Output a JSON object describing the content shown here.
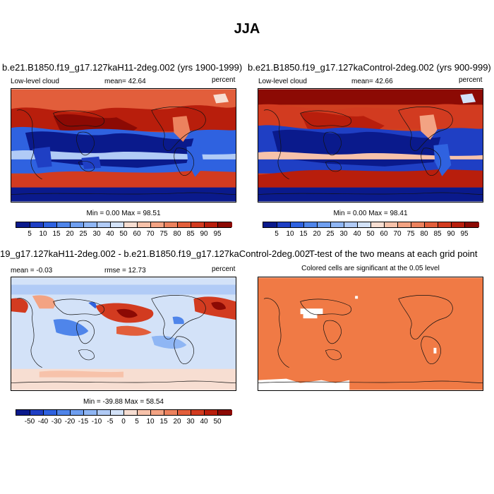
{
  "title": "JJA",
  "panels": [
    {
      "title": "b.e21.B1850.f19_g17.127kaH11-2deg.002 (yrs 1900-1999)",
      "left_label": "Low-level cloud",
      "mid_label": "mean=  42.64",
      "right_label": "percent",
      "minmax": "Min =  0.00 Max =  98.51"
    },
    {
      "title": "b.e21.B1850.f19_g17.127kaControl-2deg.002 (yrs 900-999)",
      "left_label": "Low-level cloud",
      "mid_label": "mean=  42.66",
      "right_label": "percent",
      "minmax": "Min =  0.00 Max =  98.41"
    },
    {
      "title": "19_g17.127kaH11-2deg.002 - b.e21.B1850.f19_g17.127kaControl-2deg.002",
      "left_label": "mean =  -0.03",
      "mid_label": "rmse =  12.73",
      "right_label": "percent",
      "minmax": "Min = -39.88 Max =  58.54"
    },
    {
      "title": "T-test of the two means at each grid point",
      "subtitle": "Colored cells are significant at the 0.05 level"
    }
  ],
  "colorbars": {
    "cloud": {
      "labels": [
        "5",
        "10",
        "15",
        "20",
        "25",
        "30",
        "40",
        "50",
        "60",
        "70",
        "75",
        "80",
        "85",
        "90",
        "95"
      ],
      "colors": [
        "#0a1a8c",
        "#1f3fc4",
        "#2f62e0",
        "#4f85ea",
        "#6f9ff0",
        "#8fb6f4",
        "#b1cbf6",
        "#d3e2f8",
        "#f7ded2",
        "#f7c2aa",
        "#f3a383",
        "#ec825e",
        "#e25e3b",
        "#d23b20",
        "#b81e0c",
        "#8c0a04"
      ]
    },
    "diff": {
      "labels": [
        "-50",
        "-40",
        "-30",
        "-20",
        "-15",
        "-10",
        "-5",
        "0",
        "5",
        "10",
        "15",
        "20",
        "30",
        "40",
        "50"
      ],
      "colors": [
        "#0a1a8c",
        "#1f3fc4",
        "#2f62e0",
        "#4f85ea",
        "#6f9ff0",
        "#8fb6f4",
        "#b1cbf6",
        "#d3e2f8",
        "#f7ded2",
        "#f7c2aa",
        "#f3a383",
        "#ec825e",
        "#e25e3b",
        "#d23b20",
        "#b81e0c",
        "#8c0a04"
      ]
    }
  },
  "ttest_fill_color": "#f07a45"
}
